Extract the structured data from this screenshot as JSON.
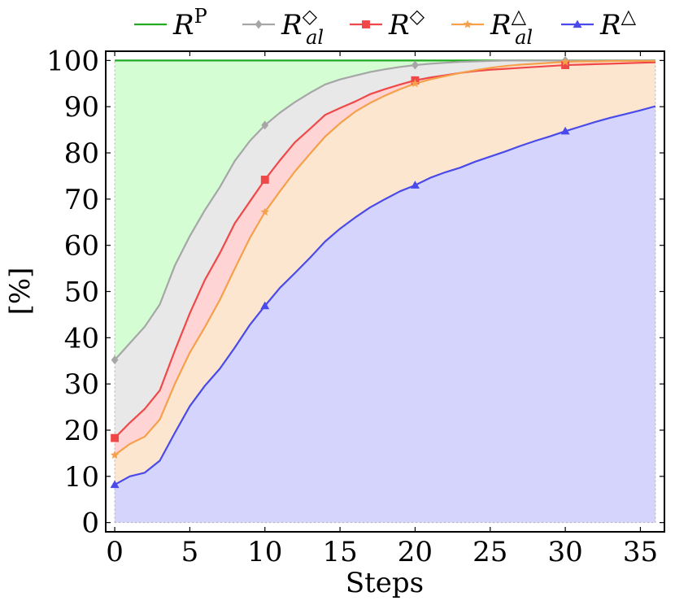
{
  "chart_data": {
    "type": "area",
    "xlabel": "Steps",
    "ylabel": "[%]",
    "xlim": [
      -0.6,
      36.6
    ],
    "ylim": [
      -2,
      102
    ],
    "xticks": [
      0,
      5,
      10,
      15,
      20,
      25,
      30,
      35
    ],
    "yticks": [
      0,
      10,
      20,
      30,
      40,
      50,
      60,
      70,
      80,
      90,
      100
    ],
    "grid": false,
    "legend_position": "top",
    "series": [
      {
        "name": "R^P",
        "label_base": "R",
        "label_sup": "P",
        "label_sub": "",
        "color": "#22aa22",
        "fill": "#d4fdd4",
        "marker": "none",
        "x": [
          0,
          36
        ],
        "y": [
          100,
          100
        ],
        "marker_x": []
      },
      {
        "name": "R^◇_al",
        "label_base": "R",
        "label_sup": "◇",
        "label_sub": "al",
        "color": "#a6a6a6",
        "fill": "#e8e8e8",
        "marker": "diamond",
        "x": [
          0,
          1,
          2,
          3,
          4,
          5,
          6,
          7,
          8,
          9,
          10,
          11,
          12,
          13,
          14,
          15,
          16,
          17,
          18,
          19,
          20,
          21,
          22,
          23,
          24,
          25,
          26,
          27,
          28,
          29,
          30,
          31,
          32,
          33,
          34,
          35,
          36
        ],
        "y": [
          35.2,
          38.8,
          42.4,
          47.2,
          55.6,
          62,
          67.6,
          72.6,
          78.3,
          82.6,
          86,
          88.7,
          91,
          93,
          94.8,
          95.9,
          96.7,
          97.5,
          98.1,
          98.6,
          99,
          99.3,
          99.5,
          99.7,
          99.8,
          99.9,
          100,
          100,
          100,
          100,
          100,
          100,
          100,
          100,
          100,
          100,
          100
        ],
        "marker_x": [
          0,
          10,
          20,
          30
        ]
      },
      {
        "name": "R^◇",
        "label_base": "R",
        "label_sup": "◇",
        "label_sub": "",
        "color": "#f04848",
        "fill": "#ffd4d4",
        "marker": "square",
        "x": [
          0,
          1,
          2,
          3,
          4,
          5,
          6,
          7,
          8,
          9,
          10,
          11,
          12,
          13,
          14,
          15,
          16,
          17,
          18,
          19,
          20,
          21,
          22,
          23,
          24,
          25,
          26,
          27,
          28,
          29,
          30,
          31,
          32,
          33,
          34,
          35,
          36
        ],
        "y": [
          18.3,
          21.6,
          24.6,
          28.6,
          37.2,
          45.3,
          52.5,
          58.3,
          64.8,
          69.5,
          74.2,
          78.4,
          82.3,
          85.2,
          88.2,
          89.7,
          91.1,
          92.7,
          93.8,
          94.8,
          95.7,
          96.3,
          96.8,
          97.3,
          97.7,
          98,
          98.2,
          98.4,
          98.6,
          98.8,
          99,
          99.1,
          99.2,
          99.3,
          99.4,
          99.5,
          99.6
        ],
        "marker_x": [
          0,
          10,
          20,
          30
        ]
      },
      {
        "name": "R^△_al",
        "label_base": "R",
        "label_sup": "△",
        "label_sub": "al",
        "color": "#f5a04a",
        "fill": "#fde6d0",
        "marker": "star",
        "x": [
          0,
          1,
          2,
          3,
          4,
          5,
          6,
          7,
          8,
          9,
          10,
          11,
          12,
          13,
          14,
          15,
          16,
          17,
          18,
          19,
          20,
          21,
          22,
          23,
          24,
          25,
          26,
          27,
          28,
          29,
          30,
          31,
          32,
          33,
          34,
          35,
          36
        ],
        "y": [
          14.6,
          17,
          18.6,
          22.3,
          30,
          36.8,
          42.3,
          48.2,
          55,
          61.6,
          67.2,
          71.7,
          76,
          79.8,
          83.5,
          86.4,
          88.9,
          90.8,
          92.4,
          93.8,
          95,
          95.9,
          96.6,
          97.3,
          97.9,
          98.4,
          98.8,
          99.1,
          99.3,
          99.5,
          99.7,
          99.8,
          99.8,
          99.9,
          99.9,
          99.9,
          99.9
        ],
        "marker_x": [
          0,
          10,
          20,
          30
        ]
      },
      {
        "name": "R^△",
        "label_base": "R",
        "label_sup": "△",
        "label_sub": "",
        "color": "#4a4aea",
        "fill": "#d4d4fd",
        "marker": "triangle",
        "x": [
          0,
          1,
          2,
          3,
          4,
          5,
          6,
          7,
          8,
          9,
          10,
          11,
          12,
          13,
          14,
          15,
          16,
          17,
          18,
          19,
          20,
          21,
          22,
          23,
          24,
          25,
          26,
          27,
          28,
          29,
          30,
          31,
          32,
          33,
          34,
          35,
          36
        ],
        "y": [
          8.2,
          10,
          10.8,
          13.4,
          19.4,
          25.2,
          29.6,
          33.3,
          37.9,
          42.8,
          46.9,
          50.8,
          54,
          57.3,
          60.8,
          63.6,
          66,
          68.2,
          70,
          71.7,
          73,
          74.6,
          75.8,
          76.8,
          78.1,
          79.2,
          80.3,
          81.5,
          82.6,
          83.6,
          84.7,
          85.7,
          86.7,
          87.6,
          88.4,
          89.2,
          90.1
        ],
        "marker_x": [
          0,
          10,
          20,
          30
        ]
      }
    ]
  }
}
